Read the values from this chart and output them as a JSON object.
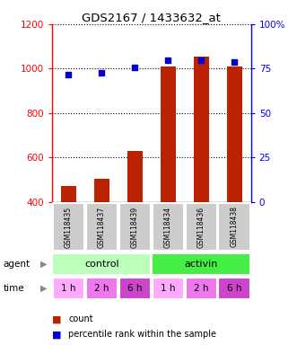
{
  "title": "GDS2167 / 1433632_at",
  "categories": [
    "GSM118435",
    "GSM118437",
    "GSM118439",
    "GSM118434",
    "GSM118436",
    "GSM118438"
  ],
  "bar_values": [
    470,
    505,
    630,
    1010,
    1055,
    1010
  ],
  "dot_values": [
    71.5,
    72.5,
    75.5,
    79.5,
    79.5,
    78.5
  ],
  "bar_color": "#bb2200",
  "dot_color": "#0000cc",
  "left_ylim": [
    400,
    1200
  ],
  "left_yticks": [
    400,
    600,
    800,
    1000,
    1200
  ],
  "right_ylim": [
    0,
    100
  ],
  "right_yticks": [
    0,
    25,
    50,
    75,
    100
  ],
  "right_yticklabels": [
    "0",
    "25",
    "50",
    "75",
    "100%"
  ],
  "agent_colors": [
    "#bbffbb",
    "#44ee44"
  ],
  "agent_labels": [
    "control",
    "activin"
  ],
  "time_labels": [
    "1 h",
    "2 h",
    "6 h",
    "1 h",
    "2 h",
    "6 h"
  ],
  "time_colors": [
    "#ffaaff",
    "#ee77ee",
    "#cc44cc",
    "#ffaaff",
    "#ee77ee",
    "#cc44cc"
  ],
  "gsm_bg_color": "#cccccc",
  "legend_count_color": "#bb2200",
  "legend_dot_color": "#0000cc"
}
